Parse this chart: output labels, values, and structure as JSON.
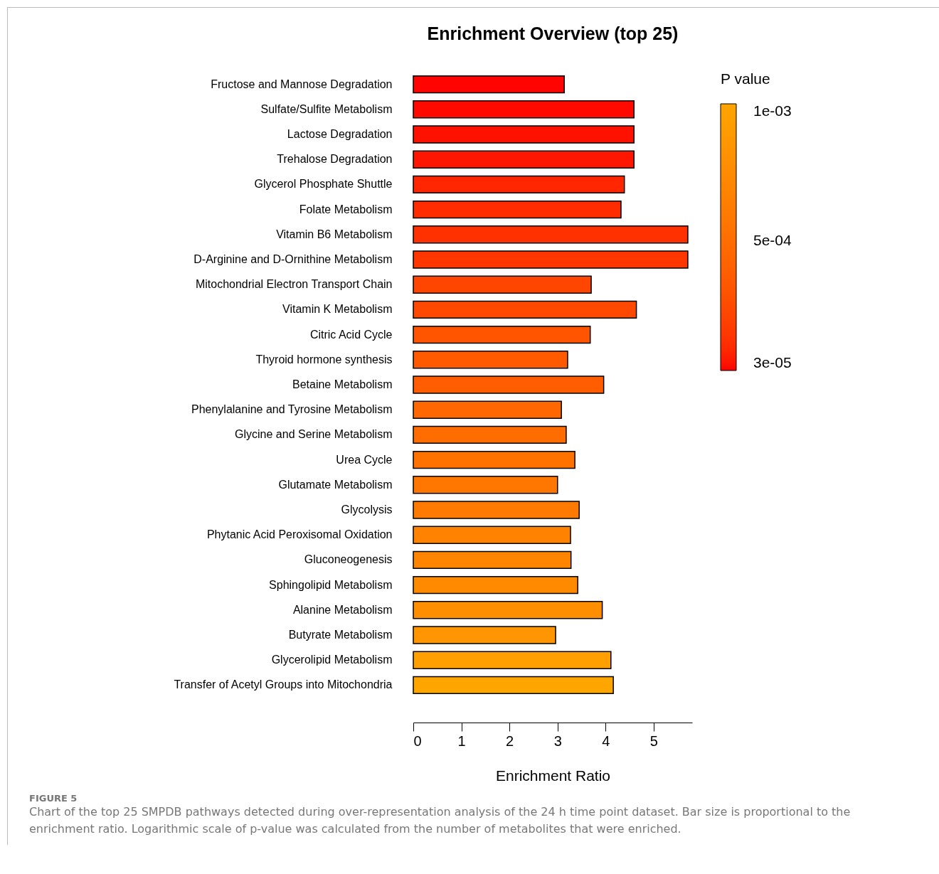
{
  "chart_data": {
    "type": "bar",
    "orientation": "horizontal",
    "title": "Enrichment Overview (top 25)",
    "xlabel": "Enrichment Ratio",
    "clabel": "P value",
    "categories": [
      "Fructose and Mannose Degradation",
      "Sulfate/Sulfite Metabolism",
      "Lactose Degradation",
      "Trehalose Degradation",
      "Glycerol Phosphate Shuttle",
      "Folate Metabolism",
      "Vitamin B6 Metabolism",
      "D-Arginine and D-Ornithine Metabolism",
      "Mitochondrial Electron Transport Chain",
      "Vitamin K Metabolism",
      "Citric Acid Cycle",
      "Thyroid hormone synthesis",
      "Betaine Metabolism",
      "Phenylalanine and Tyrosine Metabolism",
      "Glycine and Serine Metabolism",
      "Urea Cycle",
      "Glutamate Metabolism",
      "Glycolysis",
      "Phytanic Acid Peroxisomal Oxidation",
      "Gluconeogenesis",
      "Sphingolipid Metabolism",
      "Alanine Metabolism",
      "Butyrate Metabolism",
      "Glycerolipid Metabolism",
      "Transfer of Acetyl Groups into Mitochondria"
    ],
    "values": [
      3.14,
      4.59,
      4.59,
      4.59,
      4.39,
      4.32,
      5.71,
      5.71,
      3.7,
      4.64,
      3.68,
      3.21,
      3.96,
      3.08,
      3.18,
      3.36,
      3.0,
      3.45,
      3.27,
      3.28,
      3.42,
      3.93,
      2.96,
      4.11,
      4.16
    ],
    "cvalues": [
      3.5e-05,
      4e-05,
      5e-05,
      6e-05,
      0.0001,
      0.00012,
      0.00014,
      0.00016,
      0.00024,
      0.00025,
      0.00032,
      0.00036,
      0.00038,
      0.00046,
      0.0005,
      0.00054,
      0.00058,
      0.0006,
      0.00068,
      0.0007,
      0.00074,
      0.00078,
      0.00084,
      0.00094,
      0.001
    ],
    "clim": [
      3e-05,
      0.001
    ],
    "cticks": [
      {
        "value": 3e-05,
        "label": "3e-05"
      },
      {
        "value": 0.0005,
        "label": "5e-04"
      },
      {
        "value": 0.001,
        "label": "1e-03"
      }
    ],
    "xlim": [
      0,
      5.8
    ],
    "xticks": [
      0,
      1,
      2,
      3,
      4,
      5
    ],
    "grid": false,
    "annotations": [
      "FIGURE 5",
      "Chart of the top 25 SMPDB pathways detected during over-representation analysis of the 24 h time point dataset. Bar size is proportional to the enrichment ratio. Logarithmic scale of p-value was calculated from the number of metabolites that were enriched."
    ]
  }
}
